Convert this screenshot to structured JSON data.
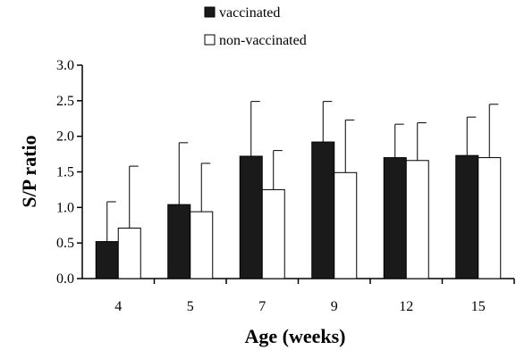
{
  "chart_data": {
    "type": "bar",
    "title": "",
    "xlabel": "Age (weeks)",
    "ylabel": "S/P ratio",
    "categories": [
      "4",
      "5",
      "7",
      "9",
      "12",
      "15"
    ],
    "ylim": [
      0,
      3.0
    ],
    "yticks": [
      "0.0",
      "0.5",
      "1.0",
      "1.5",
      "2.0",
      "2.5",
      "3.0"
    ],
    "grid": false,
    "legend_position": "top-center",
    "series": [
      {
        "name": "vaccinated",
        "color": "#1a1a1a",
        "values": [
          0.52,
          1.04,
          1.72,
          1.92,
          1.7,
          1.73
        ],
        "error": [
          0.56,
          0.87,
          0.77,
          0.57,
          0.47,
          0.54
        ]
      },
      {
        "name": "non-vaccinated",
        "color": "#ffffff",
        "values": [
          0.71,
          0.94,
          1.25,
          1.49,
          1.66,
          1.7
        ],
        "error": [
          0.87,
          0.68,
          0.55,
          0.74,
          0.53,
          0.75
        ]
      }
    ]
  }
}
